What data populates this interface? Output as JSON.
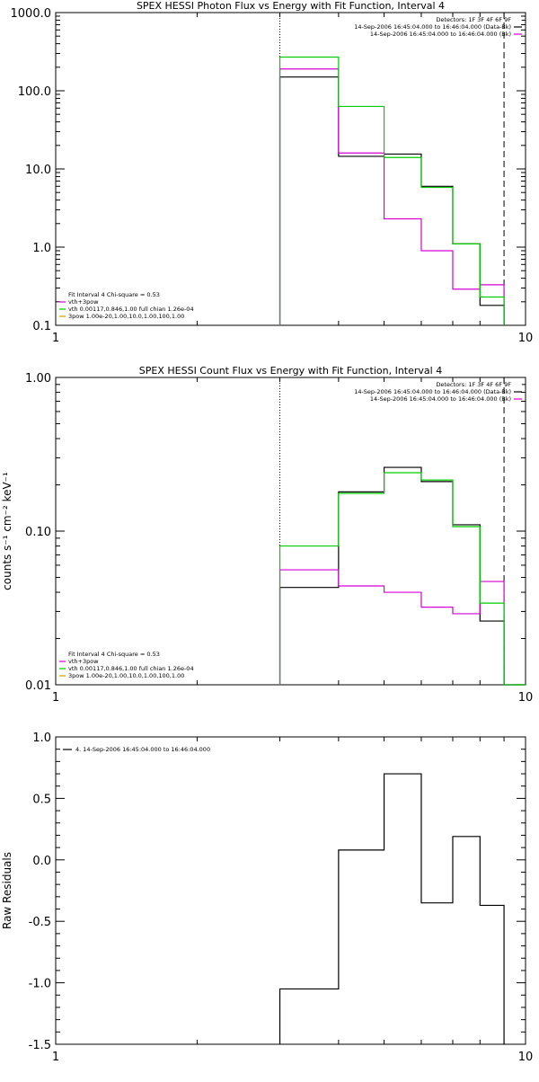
{
  "chart_data": [
    {
      "type": "line",
      "title": "SPEX HESSI Photon Flux vs Energy with Fit Function, Interval 4",
      "xlabel": "",
      "ylabel": "",
      "xscale": "log",
      "yscale": "log",
      "xlim": [
        1,
        10
      ],
      "ylim": [
        0.1,
        1000
      ],
      "x_ticks": [
        "1",
        "10"
      ],
      "y_ticks": [
        "0.1",
        "1.0",
        "10.0",
        "100.0",
        "1000.0"
      ],
      "y_tick_values": [
        0.1,
        1,
        10,
        100,
        1000
      ],
      "legend_topright": [
        "Detectors: 1F 3F 4F 6F 9F",
        "14-Sep-2006 16:45:04.000 to 16:46:04.000 (Data-Bk)",
        "14-Sep-2006 16:45:04.000 to 16:46:04.000 (Bk)"
      ],
      "legend_topright_colors": [
        "#ffffff",
        "#000000",
        "#d400d4"
      ],
      "legend_bottomleft": [
        "Fit Interval 4   Chi-square = 0.53",
        "vth+3pow",
        "vth 0.00117,0.846,1.00  full chian 1.26e-04",
        "3pow 1.00e-20,1.00,10.0,1.00,100,1.00"
      ],
      "legend_bottomleft_colors": [
        "#ffffff",
        "#d400d4",
        "#00cc00",
        "#e0a000"
      ],
      "vlines": [
        {
          "x": 3,
          "style": "dotted"
        },
        {
          "x": 9,
          "style": "dashed"
        }
      ],
      "bin_edges": [
        3,
        4,
        5,
        6,
        7,
        8,
        9
      ],
      "series": [
        {
          "name": "Data-Bk",
          "color": "#000000",
          "values": [
            150,
            14.5,
            15.5,
            6,
            1.1,
            0.18
          ]
        },
        {
          "name": "Bk",
          "color": "#d400d4",
          "values": [
            190,
            16,
            2.3,
            0.9,
            0.29,
            0.33
          ]
        },
        {
          "name": "vth+3pow",
          "color": "#00cc00",
          "values": [
            270,
            63,
            14,
            5.8,
            1.1,
            0.23
          ]
        }
      ]
    },
    {
      "type": "line",
      "title": "SPEX HESSI Count Flux vs Energy with Fit Function, Interval 4",
      "xlabel": "",
      "ylabel": "counts s⁻¹ cm⁻² keV⁻¹",
      "xscale": "log",
      "yscale": "log",
      "xlim": [
        1,
        10
      ],
      "ylim": [
        0.01,
        1
      ],
      "x_ticks": [
        "1",
        "10"
      ],
      "y_ticks": [
        "0.01",
        "0.10",
        "1.00"
      ],
      "y_tick_values": [
        0.01,
        0.1,
        1
      ],
      "legend_topright": [
        "Detectors: 1F 3F 4F 6F 9F",
        "14-Sep-2006 16:45:04.000 to 16:46:04.000 (Data-Bk)",
        "14-Sep-2006 16:45:04.000 to 16:46:04.000 (Bk)"
      ],
      "legend_topright_colors": [
        "#ffffff",
        "#000000",
        "#d400d4"
      ],
      "legend_bottomleft": [
        "Fit Interval 4   Chi-square = 0.53",
        "vth+3pow",
        "vth 0.00117,0.846,1.00  full chian 1.26e-04",
        "3pow 1.00e-20,1.00,10.0,1.00,100,1.00"
      ],
      "legend_bottomleft_colors": [
        "#ffffff",
        "#d400d4",
        "#00cc00",
        "#e0a000"
      ],
      "vlines": [
        {
          "x": 3,
          "style": "dotted"
        },
        {
          "x": 9,
          "style": "dashed"
        }
      ],
      "bin_edges": [
        3,
        4,
        5,
        6,
        7,
        8,
        9,
        10
      ],
      "series": [
        {
          "name": "Data-Bk",
          "color": "#000000",
          "values": [
            0.043,
            0.18,
            0.26,
            0.21,
            0.11,
            0.026,
            0.01
          ]
        },
        {
          "name": "Bk",
          "color": "#d400d4",
          "values": [
            0.056,
            0.044,
            0.04,
            0.032,
            0.029,
            0.047,
            0.01
          ]
        },
        {
          "name": "vth+3pow",
          "color": "#00cc00",
          "values": [
            0.08,
            0.176,
            0.24,
            0.215,
            0.107,
            0.034,
            0.01
          ]
        }
      ]
    },
    {
      "type": "line",
      "title": "",
      "xlabel": "",
      "ylabel": "Raw Residuals",
      "xscale": "log",
      "yscale": "linear",
      "xlim": [
        1,
        10
      ],
      "ylim": [
        -1.5,
        1.0
      ],
      "x_ticks": [
        "1",
        "10"
      ],
      "y_ticks": [
        "-1.5",
        "-1.0",
        "-0.5",
        "0.0",
        "0.5",
        "1.0"
      ],
      "y_tick_values": [
        -1.5,
        -1.0,
        -0.5,
        0.0,
        0.5,
        1.0
      ],
      "legend_topleft": [
        "4. 14-Sep-2006 16:45:04.000 to 16:46:04.000"
      ],
      "legend_topleft_colors": [
        "#000000"
      ],
      "bin_edges": [
        3,
        4,
        5,
        6,
        7,
        8,
        9
      ],
      "series": [
        {
          "name": "4. 14-Sep-2006 16:45:04.000 to 16:46:04.000",
          "color": "#000000",
          "values": [
            -1.05,
            0.08,
            0.7,
            -0.35,
            0.19,
            -0.37
          ]
        }
      ]
    }
  ]
}
